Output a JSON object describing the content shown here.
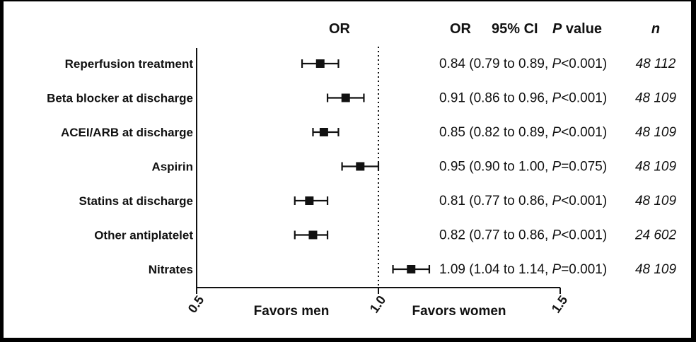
{
  "chart_data": {
    "type": "forest",
    "headers": {
      "or_axis": "OR",
      "or_col": "OR",
      "ci_col": "95% CI",
      "p_col_italic": "P",
      "p_col_rest": " value",
      "n_col": "n"
    },
    "categories": [
      "Reperfusion treatment",
      "Beta blocker at discharge",
      "ACEI/ARB at discharge",
      "Aspirin",
      "Statins at discharge",
      "Other antiplatelet",
      "Nitrates"
    ],
    "rows": [
      {
        "label": "Reperfusion treatment",
        "or": 0.84,
        "lo": 0.79,
        "hi": 0.89,
        "stat_pre": "0.84 (0.79 to 0.89, ",
        "p_letter": "P",
        "stat_post": "<0.001)",
        "n": "48 112"
      },
      {
        "label": "Beta blocker at discharge",
        "or": 0.91,
        "lo": 0.86,
        "hi": 0.96,
        "stat_pre": "0.91 (0.86 to 0.96, ",
        "p_letter": "P",
        "stat_post": "<0.001)",
        "n": "48 109"
      },
      {
        "label": "ACEI/ARB at discharge",
        "or": 0.85,
        "lo": 0.82,
        "hi": 0.89,
        "stat_pre": "0.85 (0.82 to 0.89, ",
        "p_letter": "P",
        "stat_post": "<0.001)",
        "n": "48 109"
      },
      {
        "label": "Aspirin",
        "or": 0.95,
        "lo": 0.9,
        "hi": 1.0,
        "stat_pre": "0.95 (0.90 to 1.00, ",
        "p_letter": "P",
        "stat_post": "=0.075)",
        "n": "48 109"
      },
      {
        "label": "Statins at discharge",
        "or": 0.81,
        "lo": 0.77,
        "hi": 0.86,
        "stat_pre": "0.81 (0.77 to 0.86, ",
        "p_letter": "P",
        "stat_post": "<0.001)",
        "n": "48 109"
      },
      {
        "label": "Other antiplatelet",
        "or": 0.82,
        "lo": 0.77,
        "hi": 0.86,
        "stat_pre": "0.82 (0.77 to 0.86, ",
        "p_letter": "P",
        "stat_post": "<0.001)",
        "n": "24 602"
      },
      {
        "label": "Nitrates",
        "or": 1.09,
        "lo": 1.04,
        "hi": 1.14,
        "stat_pre": "1.09 (1.04 to 1.14, ",
        "p_letter": "P",
        "stat_post": "=0.001)",
        "n": "48 109"
      }
    ],
    "xlim": [
      0.5,
      1.5
    ],
    "xticks": [
      0.5,
      1.0,
      1.5
    ],
    "xtick_labels": [
      "0.5",
      "1.0",
      "1.5"
    ],
    "reference_line": 1.0,
    "favor_left": "Favors men",
    "favor_right": "Favors women"
  },
  "colors": {
    "background": "#ffffff",
    "frame": "#000000",
    "ink": "#111111"
  }
}
